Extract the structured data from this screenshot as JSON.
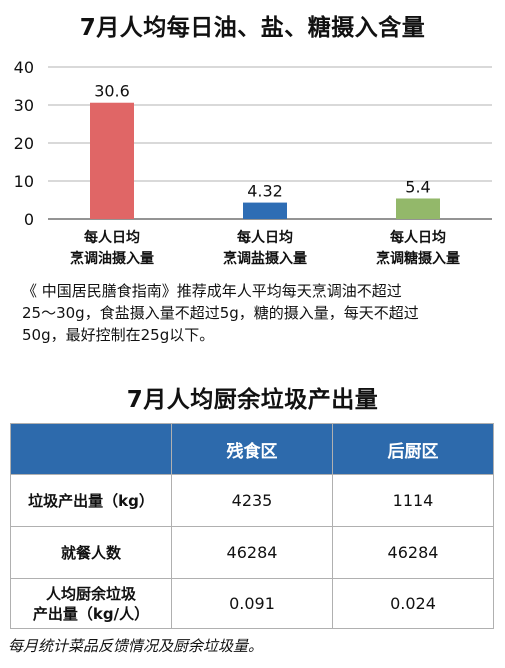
{
  "chart_data": {
    "type": "bar",
    "title": "7月人均每日油、盐、糖摄入含量",
    "categories": [
      [
        "每人日均",
        "烹调油摄入量"
      ],
      [
        "每人日均",
        "烹调盐摄入量"
      ],
      [
        "每人日均",
        "烹调糖摄入量"
      ]
    ],
    "values": [
      30.6,
      4.32,
      5.4
    ],
    "value_labels": [
      "30.6",
      "4.32",
      "5.4"
    ],
    "colors": [
      "#e06666",
      "#2e6db4",
      "#93b86a"
    ],
    "ylim": [
      0,
      40
    ],
    "yticks": [
      0,
      10,
      20,
      30,
      40
    ],
    "grid": true
  },
  "note": {
    "line1": "《 中国居民膳食指南》推荐成年人平均每天烹调油不超过",
    "line2": "25～30g，食盐摄入量不超过5g，糖的摄入量，每天不超过",
    "line3": "50g，最好控制在25g以下。"
  },
  "table": {
    "title": "7月人均厨余垃圾产出量",
    "header": [
      "",
      "残食区",
      "后厨区"
    ],
    "rows": [
      {
        "label": "垃圾产出量（kg）",
        "values": [
          "4235",
          "1114"
        ]
      },
      {
        "label": "就餐人数",
        "values": [
          "46284",
          "46284"
        ]
      },
      {
        "label_line1": "人均厨余垃圾",
        "label_line2": "产出量（kg/人）",
        "values": [
          "0.091",
          "0.024"
        ]
      }
    ]
  },
  "caption": "每月统计菜品反馈情况及厨余垃圾量。"
}
